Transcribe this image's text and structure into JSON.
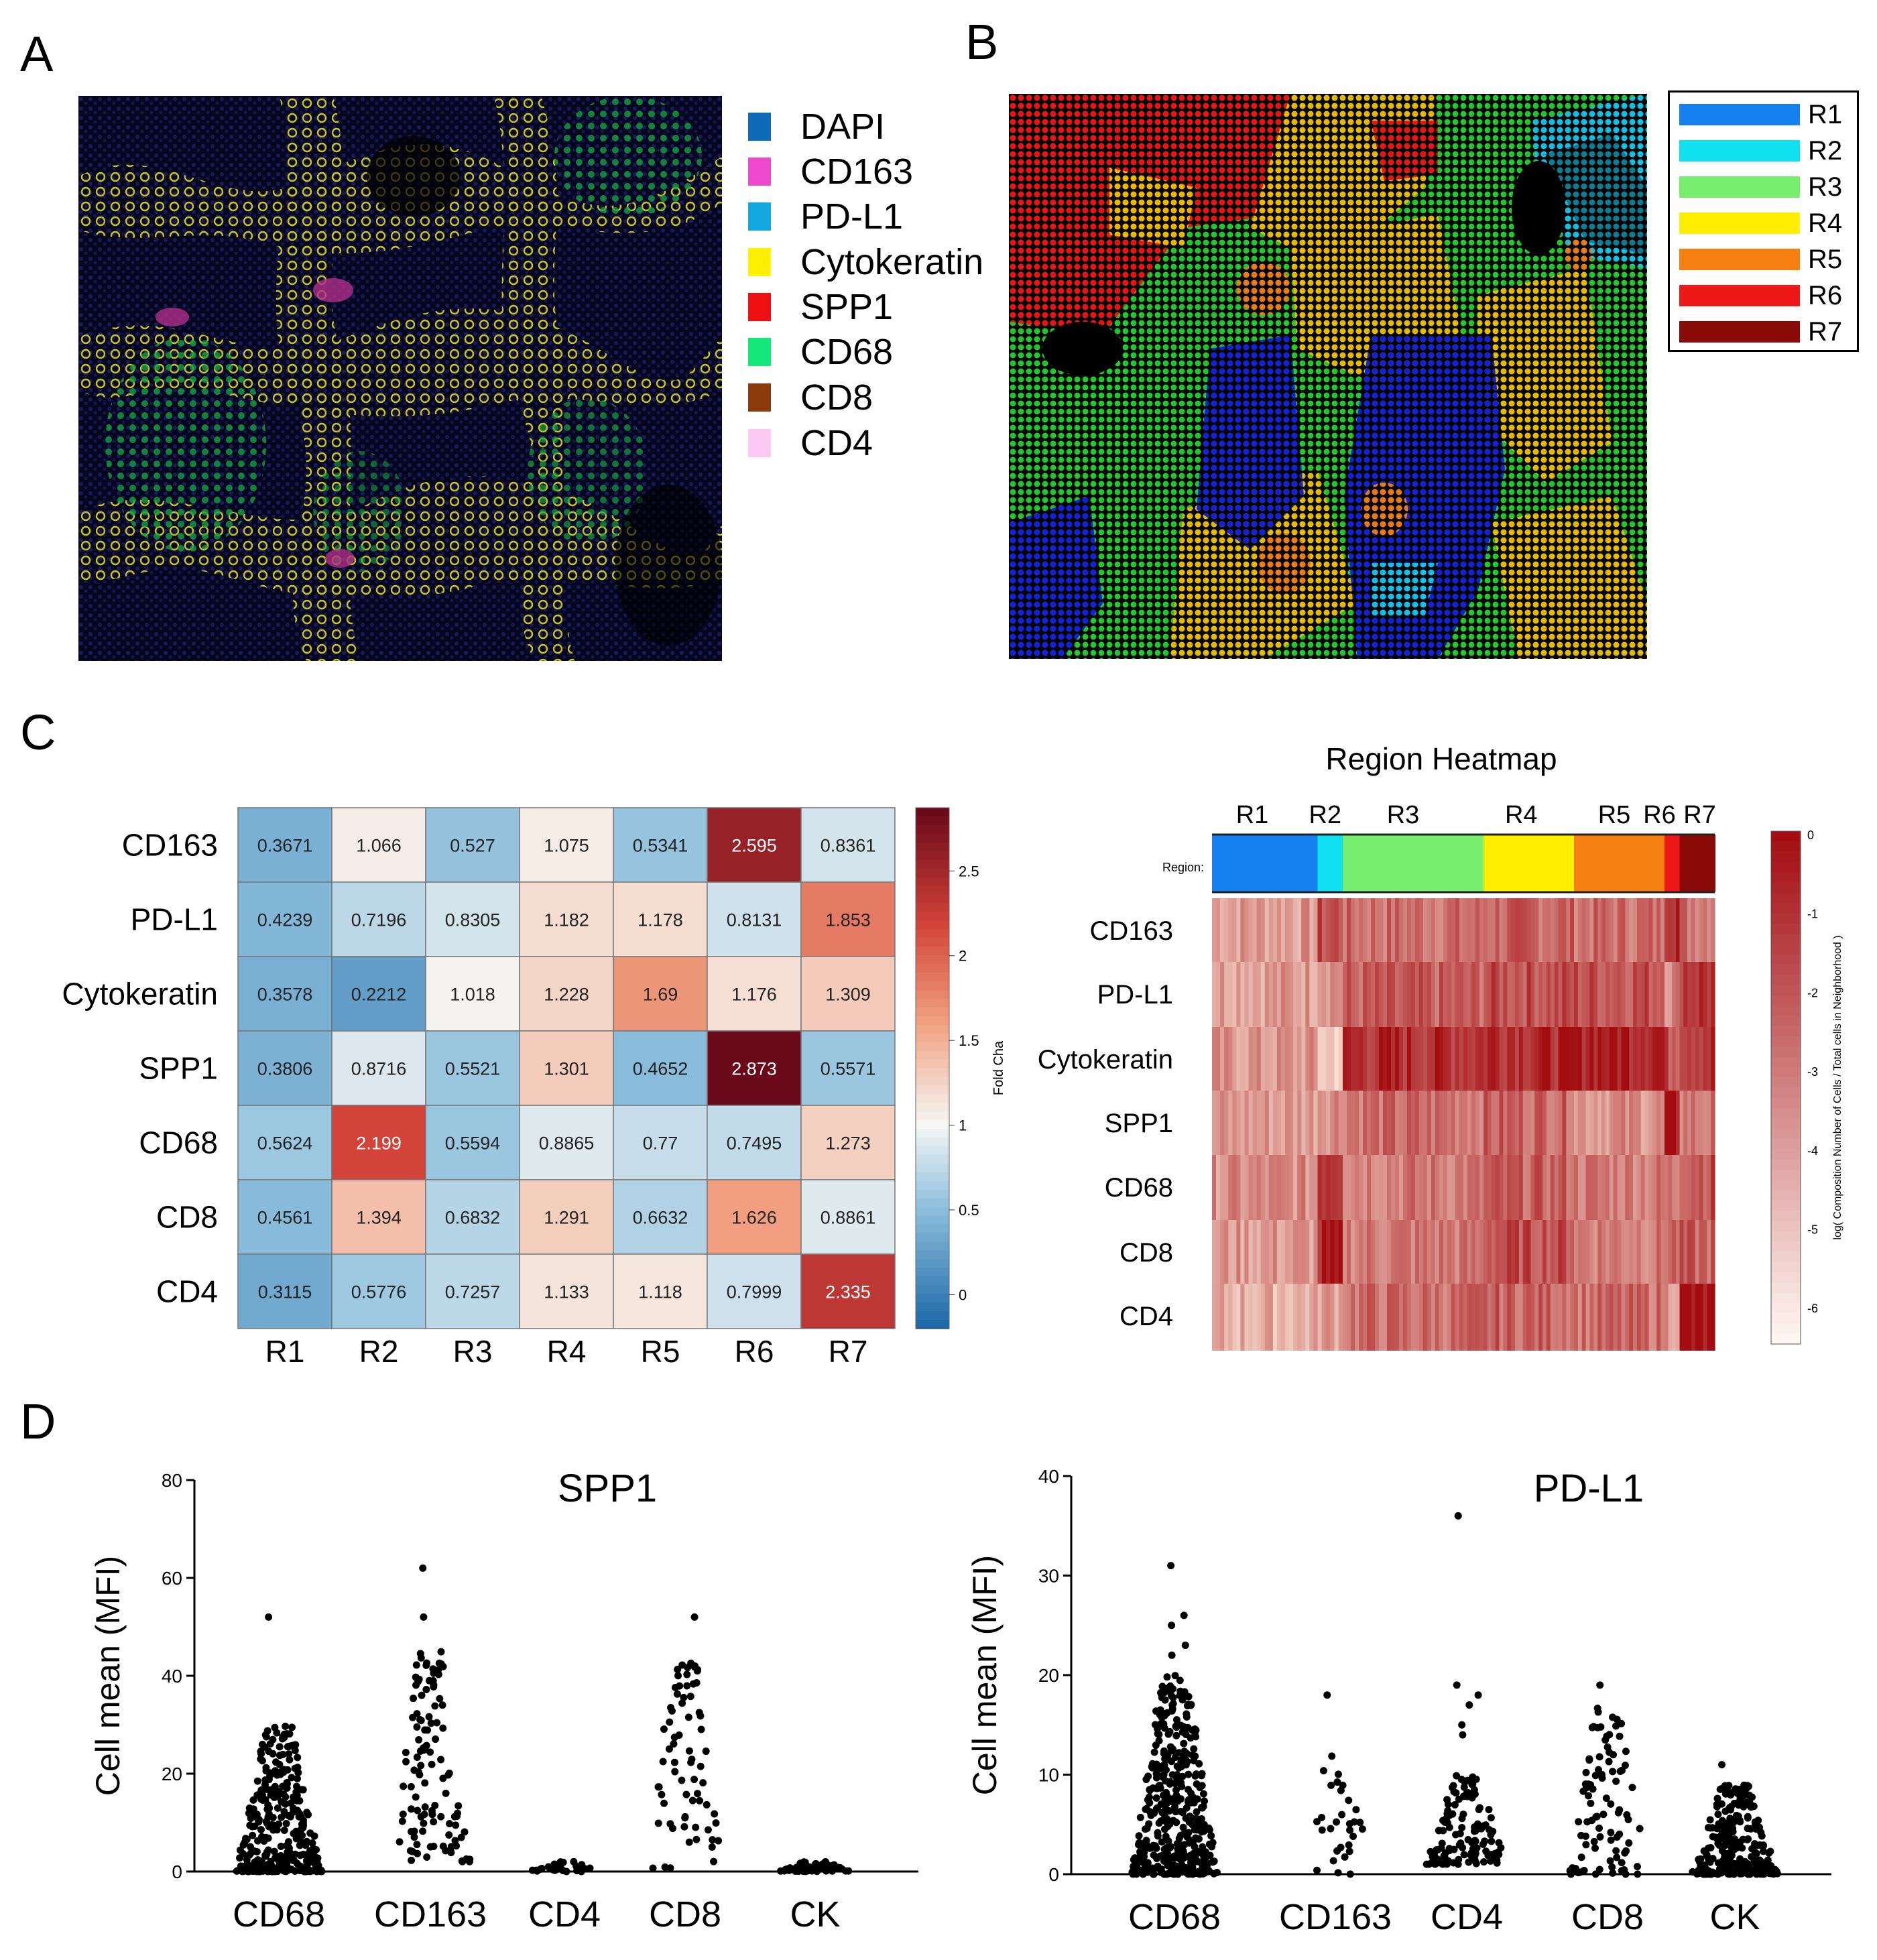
{
  "panels": {
    "a": "A",
    "b": "B",
    "c": "C",
    "d": "D"
  },
  "panel_a": {
    "legend": [
      {
        "label": "DAPI",
        "color": "#0f6ab8"
      },
      {
        "label": "CD163",
        "color": "#ee49cc"
      },
      {
        "label": "PD-L1",
        "color": "#13a7e0"
      },
      {
        "label": "Cytokeratin",
        "color": "#fff000"
      },
      {
        "label": "SPP1",
        "color": "#ee1010"
      },
      {
        "label": "CD68",
        "color": "#14e67a"
      },
      {
        "label": "CD8",
        "color": "#8b3a0e"
      },
      {
        "label": "CD4",
        "color": "#fbc7f3"
      }
    ]
  },
  "panel_b": {
    "legend": [
      {
        "label": "R1",
        "color": "#1580f0"
      },
      {
        "label": "R2",
        "color": "#10e0f0"
      },
      {
        "label": "R3",
        "color": "#78ee70"
      },
      {
        "label": "R4",
        "color": "#ffee00"
      },
      {
        "label": "R5",
        "color": "#f58010"
      },
      {
        "label": "R6",
        "color": "#ee1818"
      },
      {
        "label": "R7",
        "color": "#8a0a0a"
      }
    ]
  },
  "chart_data": [
    {
      "type": "heatmap",
      "title": "",
      "columns": [
        "R1",
        "R2",
        "R3",
        "R4",
        "R5",
        "R6",
        "R7"
      ],
      "rows": [
        "CD163",
        "PD-L1",
        "Cytokeratin",
        "SPP1",
        "CD68",
        "CD8",
        "CD4"
      ],
      "values": [
        [
          "0.3671",
          "1.066",
          "0.527",
          "1.075",
          "0.5341",
          "2.595",
          "0.8361"
        ],
        [
          "0.4239",
          "0.7196",
          "0.8305",
          "1.182",
          "1.178",
          "0.8131",
          "1.853"
        ],
        [
          "0.3578",
          "0.2212",
          "1.018",
          "1.228",
          "1.69",
          "1.176",
          "1.309"
        ],
        [
          "0.3806",
          "0.8716",
          "0.5521",
          "1.301",
          "0.4652",
          "2.873",
          "0.5571"
        ],
        [
          "0.5624",
          "2.199",
          "0.5594",
          "0.8865",
          "0.77",
          "0.7495",
          "1.273"
        ],
        [
          "0.4561",
          "1.394",
          "0.6832",
          "1.291",
          "0.6632",
          "1.626",
          "0.8861"
        ],
        [
          "0.3115",
          "0.5776",
          "0.7257",
          "1.133",
          "1.118",
          "0.7999",
          "2.335"
        ]
      ],
      "colorbar": {
        "label": "Fold Cha",
        "ticks": [
          "2.5",
          "2",
          "1.5",
          "1",
          "0.5",
          "0"
        ],
        "range": [
          -0.2,
          2.873
        ]
      }
    },
    {
      "type": "heatmap",
      "title": "Region  Heatmap",
      "region_label": "Region:",
      "regions": [
        "R1",
        "R2",
        "R3",
        "R4",
        "R5",
        "R6",
        "R7"
      ],
      "rows": [
        "CD163",
        "PD-L1",
        "Cytokeratin",
        "SPP1",
        "CD68",
        "CD8",
        "CD4"
      ],
      "colorbar": {
        "label": "log( Composition Number of Cells / Total cells in Neighborhood )",
        "ticks": [
          "0",
          "-1",
          "-2",
          "-3",
          "-4",
          "-5",
          "-6"
        ],
        "range": [
          -6.5,
          0
        ]
      }
    },
    {
      "type": "scatter",
      "title": "SPP1",
      "ylabel": "Cell mean (MFI)",
      "categories": [
        "CD68",
        "CD163",
        "CD4",
        "CD8",
        "CK"
      ],
      "yticks": [
        "0",
        "20",
        "40",
        "60",
        "80"
      ],
      "ylim": [
        0,
        80
      ]
    },
    {
      "type": "scatter",
      "title": "PD-L1",
      "ylabel": "Cell mean (MFI)",
      "categories": [
        "CD68",
        "CD163",
        "CD4",
        "CD8",
        "CK"
      ],
      "yticks": [
        "0",
        "10",
        "20",
        "30",
        "40"
      ],
      "ylim": [
        0,
        40
      ]
    }
  ]
}
